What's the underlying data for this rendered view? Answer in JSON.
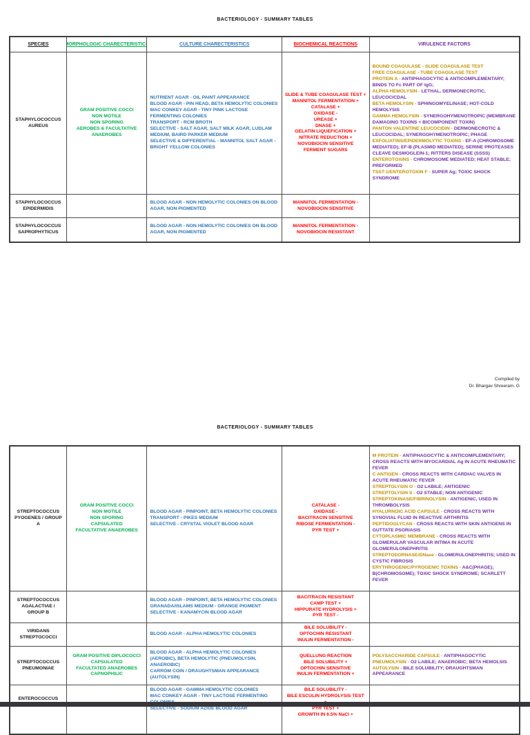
{
  "sep": " - ",
  "colors": {
    "green": "#00B050",
    "blue": "#2E75B6",
    "red": "#FF0000",
    "purple": "#7030A0",
    "gold": "#BF9000",
    "footer": "#36363B"
  },
  "credit": {
    "line1": "Compiled by",
    "line2": "Dr. Bhargav Shreeram. G"
  },
  "pages": [
    {
      "title": "BACTERIOLOGY - SUMMARY TABLES",
      "column_headers": [
        {
          "label": "SPECIES",
          "color": "#1A1A1A",
          "underline": true
        },
        {
          "label": "MORPHOLOGIC CHARECTERISTICS",
          "color": "#00B050",
          "underline": true
        },
        {
          "label": "CULTURE CHARECTERISTICS",
          "color": "#2E75B6",
          "underline": true
        },
        {
          "label": "BIOCHEMICAL REACTIONS",
          "color": "#FF0000",
          "underline": true
        },
        {
          "label": "VIRULENCE FACTORS",
          "color": "#7030A0",
          "underline": false
        }
      ],
      "rows": [
        {
          "species": [
            "STAPHYLOCOCCUS",
            "AUREUS"
          ],
          "morphology": [
            "GRAM POSITIVE COCCI",
            "NON MOTILE",
            "NON SPORING",
            "AEROBES & FACULTATIVE ANAEROBES"
          ],
          "culture": [
            "NUTRIENT AGAR - OIL PAINT APPEARANCE",
            "BLOOD AGAR - PIN HEAD, BETA HEMOLYTIC COLONIES",
            "MAC CONKEY AGAR - TINY PINK LACTOSE FERMENTING COLONIES",
            "TRANSPORT - RCM BROTH",
            "SELECTIVE - SALT AGAR, SALT MILK AGAR, LUDLAM MEDIUM, BAIRD PARKER MEDIUM",
            "SELECTIVE & DIFFERENTIAL - MANNITOL SALT AGAR - BRIGHT YELLOW COLONIES"
          ],
          "biochemical": [
            "SLIDE & TUBE COAGULASE TEST +",
            "MANNITOL FERMENTATION +",
            "CATALASE +",
            "OXIDASE -",
            "UREASE +",
            "DNASE +",
            "GELATIN LIQUEFICATION +",
            "NITRATE REDUCTION +",
            "NOVOBIOCIN SENSITIVE",
            "FERMENT SUGARS"
          ],
          "virulence": [
            {
              "term": "BOUND COAGULASE",
              "desc": "SLIDE COAGULASE TEST",
              "gold_desc": true
            },
            {
              "term": "FREE COAGULASE",
              "desc": "TUBE COAGULASE TEST",
              "gold_desc": true
            },
            {
              "term": "PROTEIN A",
              "desc": "ANTIPHAGOCYTIC & ANTICOMPLEMENTARY; BINDS TO Fc PART OF IgG;"
            },
            {
              "term": "ALPHA HEMOLYSIN",
              "desc": "LETHAL, DERMONECROTIC, LEUCOCICDAL"
            },
            {
              "term": "BETA HEMOLYSIN",
              "desc": "SPHINGOMYELINASE; HOT-COLD HEMOLYSIS"
            },
            {
              "term": "GAMMA HEMOLYSIN",
              "desc": "SYNERGOHYMENOTROPIC (MEMBRANE DAMAGING TOXINS + BICOMPONENT TOXIN)"
            },
            {
              "term": "PANTON VALENTINE LEUCOCIDIN",
              "desc": "DERMONECROTIC & LEUCOCIDAL; SYNERGOHYMENOTROPIC; PHAGE"
            },
            {
              "term": "EXFOLIATINS/EPIDERMOLYTIC TOXINS",
              "desc": "EF-A (CHROMOSOME MEDIATED); EF-B (PLASMID MEDIATED); SERINE PROTEASES CLEAVE DESMOGLEIN-1; RITTERS DISEASE (SSSS)"
            },
            {
              "term": "ENTEROTOXINS",
              "desc": "CHROMOSOME MEDIATED; HEAT STABLE; PREFORMED"
            },
            {
              "term": "TSST-1/ENTEROTOXIN F",
              "desc": "SUPER Ag; TOXIC SHOCK SYNDROME"
            }
          ]
        },
        {
          "species": [
            "STAPHYLOCOCCUS",
            "EPIDERMIDIS"
          ],
          "morphology": [],
          "culture": [
            "BLOOD AGAR - NON HEMOLYTIC COLONIES ON BLOOD AGAR, NON PIGMENTED"
          ],
          "biochemical": [
            "MANNITOL FERMENTATION -",
            "NOVOBIOCIN SENSITIVE"
          ],
          "virulence": []
        },
        {
          "species": [
            "STAPHYLOCOCCUS",
            "SAPROPHYTICUS"
          ],
          "morphology": [],
          "culture": [
            "BLOOD AGAR - NON HEMOLYTIC COLONIES ON BLOOD AGAR, NON PIGMENTED"
          ],
          "biochemical": [
            "MANNITOL FERMENTATION -",
            "NOVOBIOCIN RESISTANT"
          ],
          "virulence": []
        }
      ]
    },
    {
      "title": "BACTERIOLOGY - SUMMARY TABLES",
      "column_headers": null,
      "rows": [
        {
          "species": [
            "STREPTOCOCCUS",
            "PYOGENES / GROUP A"
          ],
          "morphology": [
            "GRAM POSITIVE COCCI",
            "NON MOTILE",
            "NON SPORING",
            "CAPSULATED",
            "FACULTATIVE ANAEROBES"
          ],
          "culture": [
            "BLOOD AGAR - PINPOINT, BETA HEMOLYTIC COLONIES",
            "TRANSPORT - PIKES MEDIUM",
            "SELECTIVE - CRYSTAL VIOLET BLOOD AGAR"
          ],
          "biochemical": [
            "CATALASE -",
            "OXIDASE -",
            "BACITRACIN SENSITIVE",
            "RIBOSE FERMENTATION -",
            "PYR TEST +"
          ],
          "virulence": [
            {
              "term": "M PROTEIN",
              "desc": "ANTIPHAGOCYTIC & ANTICOMPLEMENTARY; CROSS REACTS WITH MYOCARDIAL Ag IN ACUTE RHEUMATIC FEVER"
            },
            {
              "term": "C ANTIGEN",
              "desc": "CROSS REACTS WITH CARDIAC VALVES IN ACUTE RHEUMATIC FEVER"
            },
            {
              "term": "STREPTOLYSIN O",
              "desc": "O2 LABILE; ANTIGENIC"
            },
            {
              "term": "STREPTOLYSIN S",
              "desc": "O2 STABLE; NON ANTIGENIC"
            },
            {
              "term": "STREPTOKINASE/FIBRINOLYSIN",
              "desc": "ANTIGENIC, USED IN THROMBOLYSIS"
            },
            {
              "term": "HYALURNOIC ACID CAPSULE",
              "desc": "CROSS REACTS WITH SYNOVIAL FLUID IN REACTIVE ARTHRITIS"
            },
            {
              "term": "PEPTIDOGLYCAN",
              "desc": "CROSS REACTS WITH SKIN ANTIGENS IN GUTTATE PSORIASIS"
            },
            {
              "term": "CYTOPLASMIC MEMBRANE",
              "desc": "CROSS REACTS WITH GLOMERULAR VASCULAR INTIMA IN ACUTE GLOMERULONEPHRITIS"
            },
            {
              "term": "STREPTODORNASE/DNase",
              "desc": "GLOMERULONEPHRITIS; USED IN CYSTIC FIBROSIS"
            },
            {
              "term": "ERYTHROGENIC/PYROGENIC TOXINS",
              "desc": "A&C(PHAGE); B(CHROMOSOME); TOXIC SHOCK SYNDROME; SCARLETT FEVER"
            }
          ]
        },
        {
          "species": [
            "STREPTOCOCCUS",
            "AGALACTIAE / GROUP B"
          ],
          "morphology": [],
          "culture": [
            "BLOOD AGAR - PINPOINT, BETA HEMOLYTIC COLONIES",
            "GRANADA/ISLAMS MEDIUM - ORANGE PIGMENT",
            "SELECTIVE - KANAMYCIN BLOOD AGAR"
          ],
          "biochemical": [
            "BACITRACIN RESISTANT",
            "CAMP TEST +",
            "HIPPURATE HYDROLYSIS +",
            "PYR TEST -"
          ],
          "virulence": []
        },
        {
          "species": [
            "VIRIDANS",
            "STREPTOCOCCI"
          ],
          "morphology": [],
          "culture": [
            "BLOOD AGAR - ALPHA HEMOLYTIC COLONIES"
          ],
          "biochemical": [
            "BILE SOLUBILITY -",
            "OPTOCHIN RESISTANT",
            "INULIN FERMENTATION -"
          ],
          "virulence": []
        },
        {
          "species": [
            "STREPTOCOCCUS",
            "PNEUMONIAE"
          ],
          "morphology": [
            "GRAM POSITIVE DIPLOCOCCI",
            "CAPSULATED",
            "FACULTATED ANAEROBES",
            "CAPNOPHILIC"
          ],
          "culture": [
            "BLOOD AGAR - ALPHA HEMOLYTIC COLONIES (AEROBIC), BETA HEMOLYTIC (PNEUMOLYSIN, ANAEROBIC)",
            "CARROM COIN / DRAUGHTSMAN APPEARANCE (AUTOLYSIN)"
          ],
          "biochemical": [
            "QUELLUNG REACTION",
            "BILE SOLUBILITY +",
            "OPTOCHIN SENSITIVE",
            "INULIN FERMENTATION +"
          ],
          "virulence": [
            {
              "term": "POLYSACCHARIDE CAPSULE",
              "desc": "ANTIPHAGOCYTIC"
            },
            {
              "term": "PNEUMOLYSIN",
              "desc": "O2 LABILE; ANAEROBIC; BETA HEMOLSIS"
            },
            {
              "term": "AUTOLYSIN",
              "desc": "BILE SOLUBILITY; DRAUGHTSMAN APPEARANCE"
            }
          ]
        },
        {
          "species": [
            "ENTEROCOCCUS"
          ],
          "morphology": [],
          "culture": [
            "BLOOD AGAR - GAMMA HEMOLYTIC COLONIES",
            "MAC CONKEY AGAR - TINY LACTOSE FERMENTING COLONIES",
            "SELECTIVE - SODIUM AZIDE BLOOD AGAR"
          ],
          "biochemical": [
            "BILE SOLUBILITY -",
            "BILE ESCULIN HYDROLYSIS TEST +",
            "PYR TEST +",
            "GROWTH IN 6.5% NaCl +"
          ],
          "virulence": []
        }
      ]
    }
  ]
}
